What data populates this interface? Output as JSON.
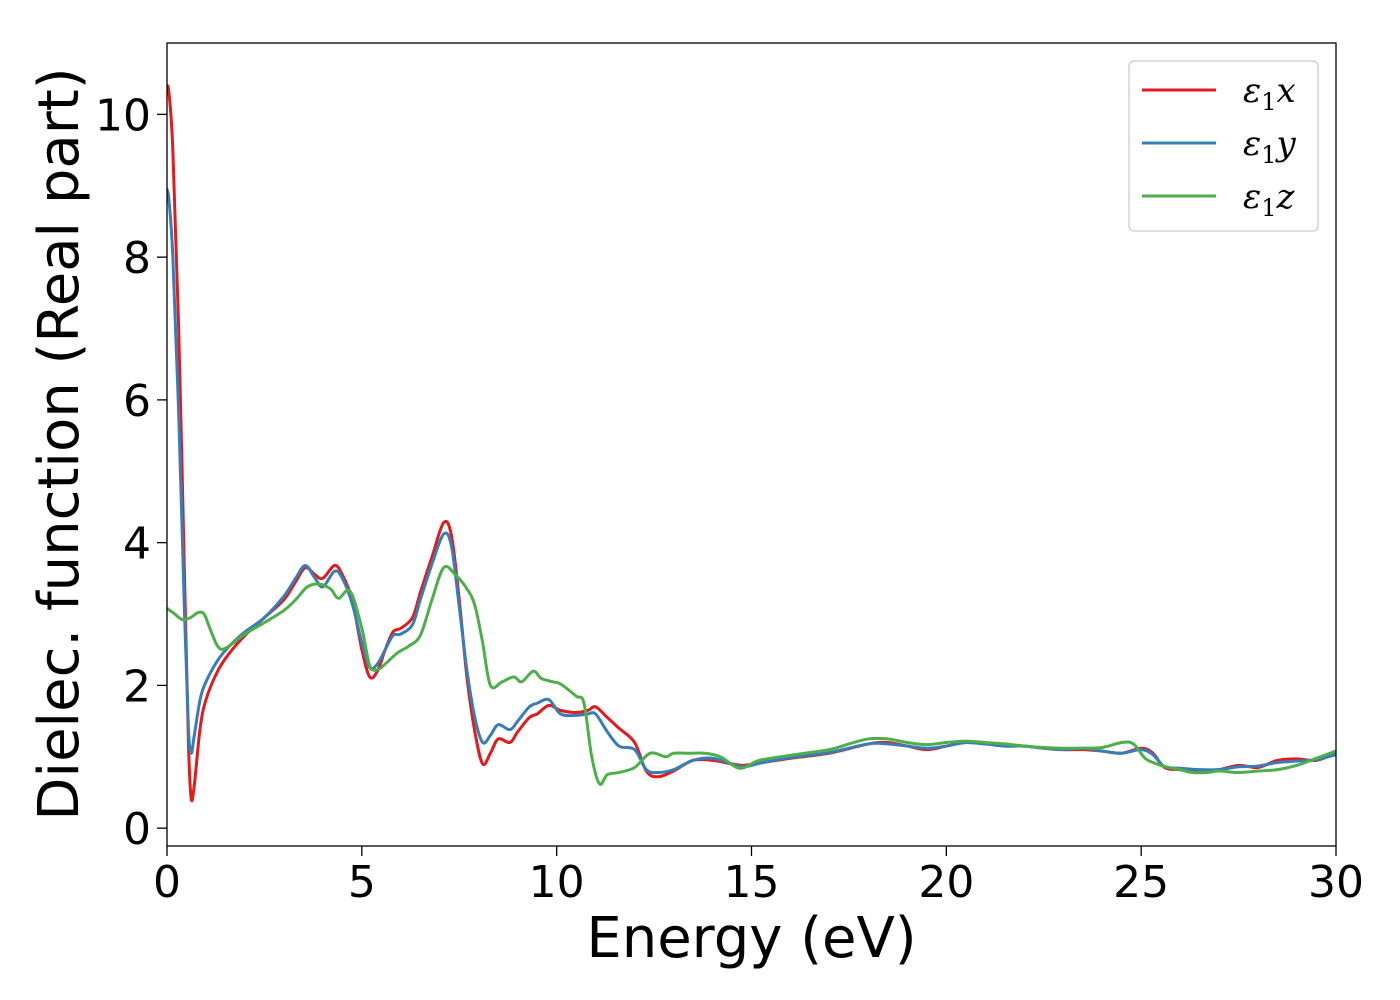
{
  "chart_data": {
    "type": "line",
    "title": "",
    "xlabel": "Energy (eV)",
    "ylabel": "Dielec. function (Real part)",
    "xlim": [
      0,
      30
    ],
    "ylim": [
      -0.25,
      11.0
    ],
    "xticks": [
      0,
      5,
      10,
      15,
      20,
      25,
      30
    ],
    "yticks": [
      0,
      2,
      4,
      6,
      8,
      10
    ],
    "grid": false,
    "legend_position": "top-right",
    "series": [
      {
        "name": "ε₁x",
        "legend_main": "ε",
        "legend_sub": "1",
        "legend_var": "x",
        "color": "#e41a1c",
        "x": [
          0.0,
          0.05,
          0.15,
          0.3,
          0.45,
          0.55,
          0.62,
          0.7,
          0.85,
          1.0,
          1.3,
          1.6,
          2.0,
          2.5,
          3.0,
          3.3,
          3.55,
          3.8,
          4.0,
          4.3,
          4.5,
          4.75,
          5.0,
          5.2,
          5.4,
          5.6,
          5.8,
          6.0,
          6.3,
          6.5,
          6.8,
          7.1,
          7.3,
          7.5,
          7.7,
          7.9,
          8.1,
          8.3,
          8.5,
          8.8,
          9.0,
          9.3,
          9.5,
          9.8,
          10.1,
          10.5,
          10.8,
          11.0,
          11.3,
          11.6,
          12.0,
          12.3,
          12.6,
          13.0,
          13.5,
          14.0,
          14.5,
          14.8,
          15.3,
          16.0,
          17.0,
          18.0,
          18.5,
          19.0,
          19.5,
          20.0,
          20.5,
          21.0,
          21.5,
          22.0,
          22.5,
          23.0,
          23.5,
          24.0,
          24.5,
          25.0,
          25.3,
          25.6,
          26.0,
          26.5,
          27.0,
          27.5,
          28.0,
          28.5,
          29.0,
          29.5,
          30.0
        ],
        "y": [
          10.4,
          10.3,
          9.5,
          7.0,
          3.5,
          1.2,
          0.42,
          0.6,
          1.4,
          1.8,
          2.2,
          2.45,
          2.7,
          2.95,
          3.2,
          3.45,
          3.65,
          3.55,
          3.5,
          3.68,
          3.55,
          3.2,
          2.5,
          2.12,
          2.2,
          2.5,
          2.75,
          2.8,
          2.95,
          3.3,
          3.8,
          4.28,
          4.1,
          3.2,
          2.1,
          1.35,
          0.9,
          1.05,
          1.25,
          1.2,
          1.35,
          1.55,
          1.6,
          1.72,
          1.65,
          1.62,
          1.65,
          1.7,
          1.55,
          1.4,
          1.2,
          0.8,
          0.72,
          0.8,
          0.95,
          0.95,
          0.9,
          0.88,
          0.92,
          0.98,
          1.05,
          1.18,
          1.2,
          1.15,
          1.1,
          1.15,
          1.2,
          1.18,
          1.15,
          1.15,
          1.12,
          1.1,
          1.1,
          1.08,
          1.05,
          1.12,
          1.05,
          0.85,
          0.82,
          0.8,
          0.82,
          0.88,
          0.85,
          0.95,
          0.97,
          0.95,
          1.05
        ]
      },
      {
        "name": "ε₁y",
        "legend_main": "ε",
        "legend_sub": "1",
        "legend_var": "y",
        "color": "#377eb8",
        "x": [
          0.0,
          0.05,
          0.15,
          0.3,
          0.45,
          0.55,
          0.62,
          0.7,
          0.85,
          1.0,
          1.3,
          1.6,
          2.0,
          2.5,
          3.0,
          3.3,
          3.55,
          3.8,
          4.0,
          4.3,
          4.5,
          4.75,
          5.0,
          5.2,
          5.4,
          5.6,
          5.8,
          6.0,
          6.3,
          6.5,
          6.8,
          7.1,
          7.3,
          7.5,
          7.7,
          7.9,
          8.1,
          8.3,
          8.5,
          8.8,
          9.0,
          9.3,
          9.5,
          9.8,
          10.1,
          10.5,
          10.8,
          11.0,
          11.3,
          11.6,
          12.0,
          12.3,
          12.6,
          13.0,
          13.5,
          14.0,
          14.5,
          14.8,
          15.3,
          16.0,
          17.0,
          18.0,
          18.5,
          19.0,
          19.5,
          20.0,
          20.5,
          21.0,
          21.5,
          22.0,
          22.5,
          23.0,
          23.5,
          24.0,
          24.5,
          25.0,
          25.3,
          25.6,
          26.0,
          26.5,
          27.0,
          27.5,
          28.0,
          28.5,
          29.0,
          29.5,
          30.0
        ],
        "y": [
          8.95,
          8.8,
          8.0,
          5.8,
          3.0,
          1.4,
          1.05,
          1.3,
          1.8,
          2.05,
          2.35,
          2.55,
          2.75,
          2.95,
          3.25,
          3.5,
          3.68,
          3.5,
          3.38,
          3.6,
          3.5,
          3.15,
          2.6,
          2.25,
          2.3,
          2.5,
          2.7,
          2.72,
          2.85,
          3.2,
          3.7,
          4.12,
          3.95,
          3.1,
          2.2,
          1.55,
          1.2,
          1.3,
          1.45,
          1.38,
          1.5,
          1.7,
          1.75,
          1.8,
          1.6,
          1.58,
          1.6,
          1.6,
          1.35,
          1.15,
          1.1,
          0.82,
          0.78,
          0.82,
          0.95,
          0.98,
          0.9,
          0.86,
          0.92,
          0.99,
          1.06,
          1.18,
          1.18,
          1.15,
          1.12,
          1.15,
          1.2,
          1.18,
          1.15,
          1.15,
          1.12,
          1.1,
          1.12,
          1.08,
          1.05,
          1.1,
          1.03,
          0.86,
          0.84,
          0.82,
          0.82,
          0.86,
          0.87,
          0.92,
          0.94,
          0.96,
          1.03
        ]
      },
      {
        "name": "ε₁z",
        "legend_main": "ε",
        "legend_sub": "1",
        "legend_var": "z",
        "color": "#4daf4a",
        "x": [
          0.0,
          0.2,
          0.4,
          0.6,
          0.8,
          0.95,
          1.1,
          1.3,
          1.5,
          2.0,
          2.5,
          3.0,
          3.3,
          3.6,
          3.9,
          4.2,
          4.4,
          4.7,
          5.0,
          5.2,
          5.4,
          5.6,
          5.9,
          6.2,
          6.5,
          6.8,
          7.1,
          7.4,
          7.7,
          7.9,
          8.1,
          8.3,
          8.6,
          8.9,
          9.1,
          9.4,
          9.6,
          9.9,
          10.1,
          10.5,
          10.7,
          10.9,
          11.1,
          11.3,
          11.6,
          12.0,
          12.4,
          12.8,
          13.0,
          13.4,
          13.8,
          14.2,
          14.7,
          15.2,
          16.0,
          17.0,
          17.5,
          18.0,
          18.5,
          19.0,
          19.5,
          20.0,
          20.5,
          21.0,
          21.5,
          22.0,
          22.5,
          23.0,
          23.5,
          24.0,
          24.5,
          24.8,
          25.1,
          25.4,
          25.7,
          26.0,
          26.3,
          26.7,
          27.0,
          27.5,
          28.0,
          28.5,
          29.0,
          29.5,
          30.0
        ],
        "y": [
          3.08,
          3.0,
          2.92,
          2.95,
          3.02,
          3.0,
          2.8,
          2.55,
          2.52,
          2.72,
          2.88,
          3.05,
          3.2,
          3.38,
          3.42,
          3.35,
          3.22,
          3.32,
          2.8,
          2.28,
          2.22,
          2.3,
          2.45,
          2.55,
          2.7,
          3.2,
          3.65,
          3.55,
          3.35,
          3.12,
          2.6,
          2.0,
          2.05,
          2.12,
          2.05,
          2.2,
          2.1,
          2.05,
          2.02,
          1.85,
          1.75,
          1.0,
          0.62,
          0.75,
          0.78,
          0.85,
          1.05,
          1.0,
          1.05,
          1.05,
          1.05,
          1.0,
          0.84,
          0.95,
          1.02,
          1.1,
          1.18,
          1.25,
          1.25,
          1.2,
          1.17,
          1.2,
          1.22,
          1.2,
          1.18,
          1.15,
          1.13,
          1.12,
          1.12,
          1.13,
          1.2,
          1.18,
          0.98,
          0.9,
          0.85,
          0.82,
          0.78,
          0.78,
          0.8,
          0.78,
          0.8,
          0.82,
          0.88,
          0.98,
          1.08
        ]
      }
    ]
  }
}
